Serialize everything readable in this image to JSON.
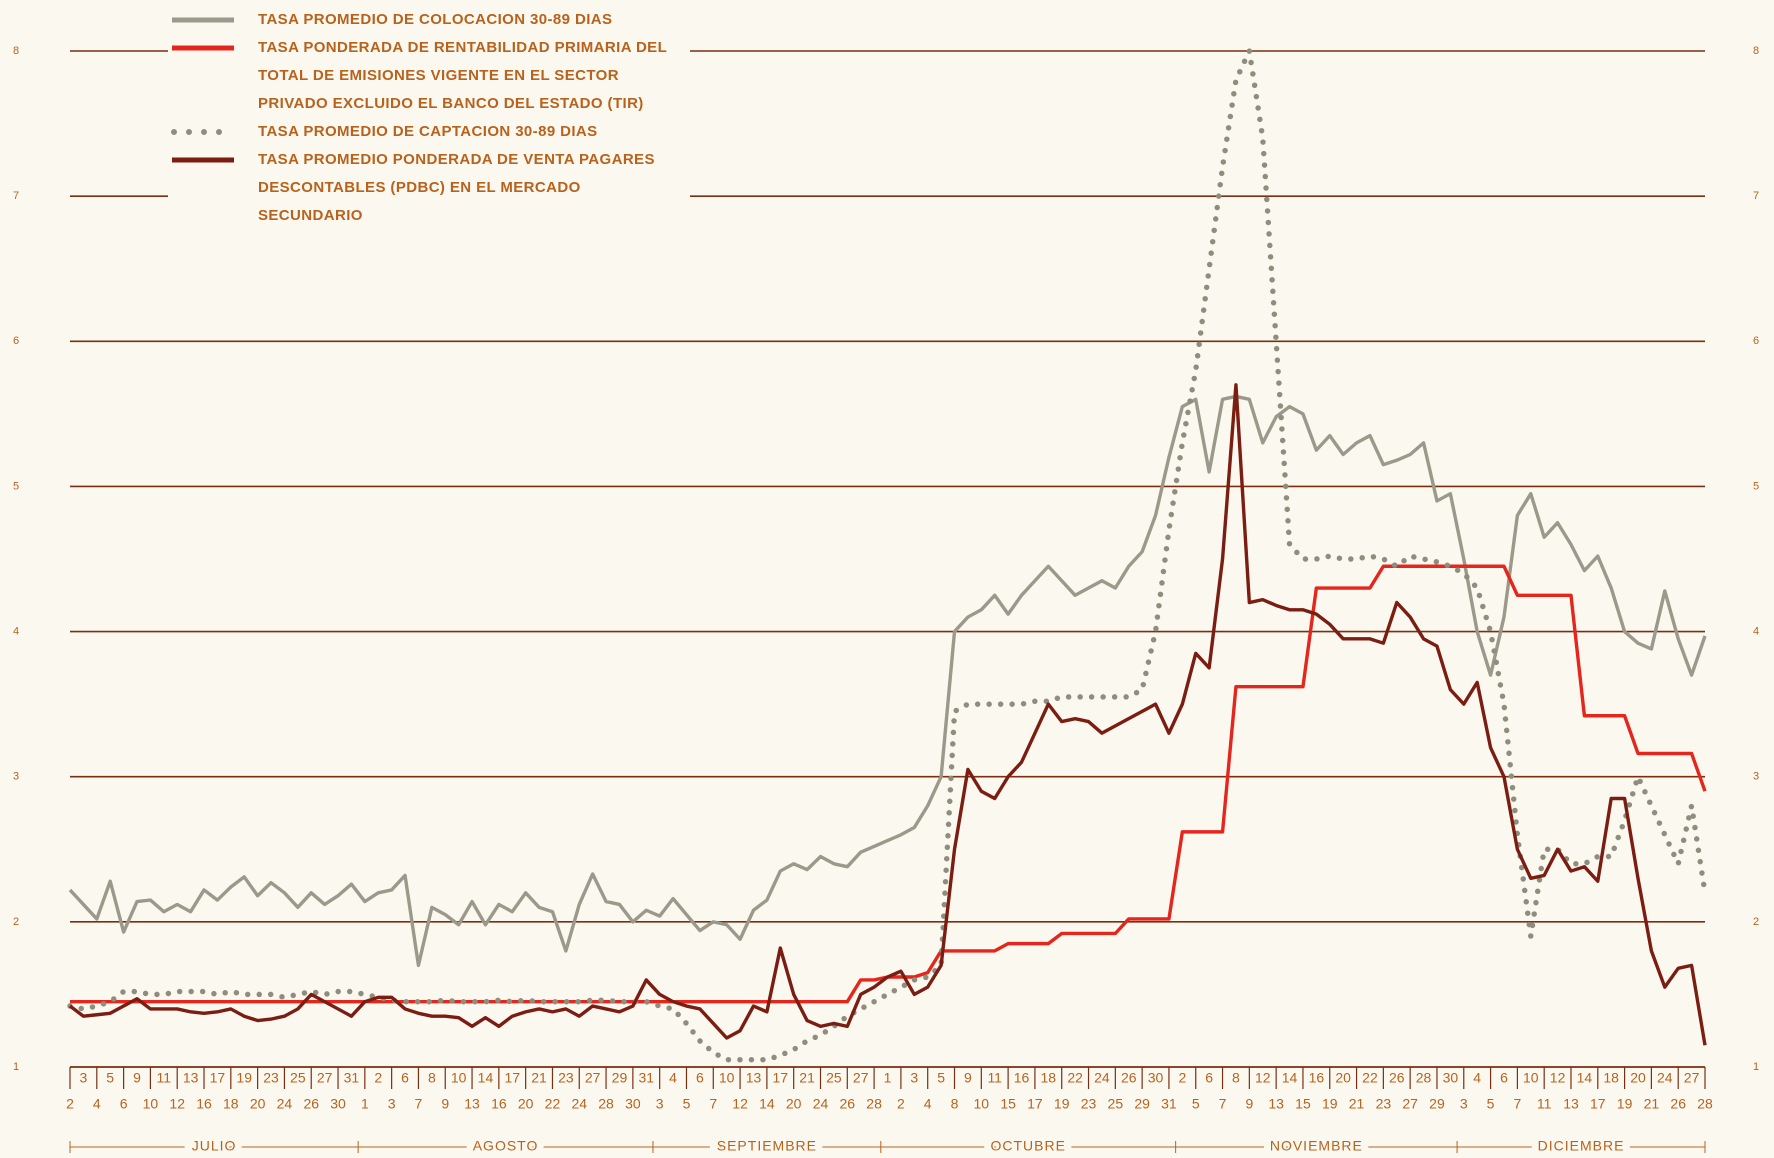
{
  "chart_data": {
    "type": "line",
    "categories": [
      "2",
      "3",
      "4",
      "5",
      "6",
      "9",
      "10",
      "11",
      "12",
      "13",
      "16",
      "17",
      "18",
      "19",
      "20",
      "23",
      "24",
      "25",
      "26",
      "27",
      "30",
      "31",
      "1",
      "2",
      "3",
      "6",
      "7",
      "8",
      "9",
      "10",
      "13",
      "14",
      "16",
      "17",
      "20",
      "21",
      "22",
      "23",
      "24",
      "27",
      "28",
      "29",
      "30",
      "31",
      "3",
      "4",
      "5",
      "6",
      "7",
      "10",
      "12",
      "13",
      "14",
      "17",
      "20",
      "21",
      "24",
      "25",
      "26",
      "27",
      "28",
      "1",
      "2",
      "3",
      "4",
      "5",
      "8",
      "9",
      "10",
      "11",
      "15",
      "16",
      "17",
      "18",
      "19",
      "22",
      "23",
      "24",
      "25",
      "26",
      "29",
      "30",
      "31",
      "2",
      "5",
      "6",
      "7",
      "8",
      "9",
      "12",
      "13",
      "14",
      "15",
      "16",
      "19",
      "20",
      "21",
      "22",
      "23",
      "26",
      "27",
      "28",
      "29",
      "30",
      "3",
      "4",
      "5",
      "6",
      "7",
      "10",
      "11",
      "12",
      "13",
      "14",
      "17",
      "18",
      "19",
      "20",
      "21",
      "24",
      "26",
      "27",
      "28"
    ],
    "months": [
      "JULIO",
      "AGOSTO",
      "SEPTIEMBRE",
      "OCTUBRE",
      "NOVIEMBRE",
      "DICIEMBRE"
    ],
    "series": [
      {
        "name": "TASA PROMEDIO DE COLOCACION 30-89 DIAS",
        "color": "#9a998a",
        "style": "solid",
        "values": [
          2.22,
          2.12,
          2.02,
          2.28,
          1.93,
          2.14,
          2.15,
          2.07,
          2.12,
          2.07,
          2.22,
          2.15,
          2.24,
          2.31,
          2.18,
          2.27,
          2.2,
          2.1,
          2.2,
          2.12,
          2.18,
          2.26,
          2.14,
          2.2,
          2.22,
          2.32,
          1.7,
          2.1,
          2.05,
          1.98,
          2.14,
          1.98,
          2.12,
          2.07,
          2.2,
          2.1,
          2.07,
          1.8,
          2.12,
          2.33,
          2.14,
          2.12,
          2.0,
          2.08,
          2.04,
          2.16,
          2.05,
          1.94,
          2.0,
          1.98,
          1.88,
          2.08,
          2.15,
          2.35,
          2.4,
          2.36,
          2.45,
          2.4,
          2.38,
          2.48,
          2.52,
          2.56,
          2.6,
          2.65,
          2.8,
          3.0,
          4.0,
          4.1,
          4.15,
          4.25,
          4.12,
          4.25,
          4.35,
          4.45,
          4.35,
          4.25,
          4.3,
          4.35,
          4.3,
          4.45,
          4.55,
          4.8,
          5.2,
          5.55,
          5.6,
          5.1,
          5.6,
          5.62,
          5.6,
          5.3,
          5.48,
          5.55,
          5.5,
          5.25,
          5.35,
          5.22,
          5.3,
          5.35,
          5.15,
          5.18,
          5.22,
          5.3,
          4.9,
          4.95,
          4.5,
          4.0,
          3.7,
          4.1,
          4.8,
          4.95,
          4.65,
          4.75,
          4.6,
          4.42,
          4.52,
          4.3,
          4.0,
          3.92,
          3.88,
          4.28,
          3.95,
          3.7,
          3.97
        ]
      },
      {
        "name": "TASA PONDERADA DE RENTABILIDAD PRIMARIA DEL TOTAL DE EMISIONES VIGENTE EN EL SECTOR PRIVADO EXCLUIDO EL BANCO DEL ESTADO (TIR)",
        "color": "#e5261d",
        "style": "solid",
        "values": [
          1.45,
          1.45,
          1.45,
          1.45,
          1.45,
          1.45,
          1.45,
          1.45,
          1.45,
          1.45,
          1.45,
          1.45,
          1.45,
          1.45,
          1.45,
          1.45,
          1.45,
          1.45,
          1.45,
          1.45,
          1.45,
          1.45,
          1.45,
          1.45,
          1.45,
          1.45,
          1.45,
          1.45,
          1.45,
          1.45,
          1.45,
          1.45,
          1.45,
          1.45,
          1.45,
          1.45,
          1.45,
          1.45,
          1.45,
          1.45,
          1.45,
          1.45,
          1.45,
          1.45,
          1.45,
          1.45,
          1.45,
          1.45,
          1.45,
          1.45,
          1.45,
          1.45,
          1.45,
          1.45,
          1.45,
          1.45,
          1.45,
          1.45,
          1.45,
          1.6,
          1.6,
          1.62,
          1.62,
          1.62,
          1.65,
          1.8,
          1.8,
          1.8,
          1.8,
          1.8,
          1.85,
          1.85,
          1.85,
          1.85,
          1.92,
          1.92,
          1.92,
          1.92,
          1.92,
          2.02,
          2.02,
          2.02,
          2.02,
          2.62,
          2.62,
          2.62,
          2.62,
          3.62,
          3.62,
          3.62,
          3.62,
          3.62,
          3.62,
          4.3,
          4.3,
          4.3,
          4.3,
          4.3,
          4.45,
          4.45,
          4.45,
          4.45,
          4.45,
          4.45,
          4.45,
          4.45,
          4.45,
          4.45,
          4.25,
          4.25,
          4.25,
          4.25,
          4.25,
          3.42,
          3.42,
          3.42,
          3.42,
          3.16,
          3.16,
          3.16,
          3.16,
          3.16,
          2.9
        ]
      },
      {
        "name": "TASA PROMEDIO DE CAPTACION 30-89 DIAS",
        "color": "#8f8e7e",
        "style": "dotted",
        "values": [
          1.42,
          1.4,
          1.42,
          1.45,
          1.52,
          1.52,
          1.5,
          1.5,
          1.52,
          1.52,
          1.52,
          1.5,
          1.52,
          1.5,
          1.5,
          1.5,
          1.48,
          1.5,
          1.52,
          1.5,
          1.52,
          1.52,
          1.5,
          1.48,
          1.46,
          1.45,
          1.45,
          1.45,
          1.46,
          1.45,
          1.45,
          1.45,
          1.46,
          1.45,
          1.46,
          1.45,
          1.45,
          1.45,
          1.45,
          1.46,
          1.46,
          1.45,
          1.45,
          1.45,
          1.42,
          1.4,
          1.3,
          1.18,
          1.1,
          1.05,
          1.05,
          1.05,
          1.05,
          1.08,
          1.12,
          1.18,
          1.22,
          1.28,
          1.35,
          1.4,
          1.45,
          1.5,
          1.55,
          1.6,
          1.62,
          1.7,
          3.45,
          3.5,
          3.5,
          3.5,
          3.5,
          3.5,
          3.52,
          3.52,
          3.55,
          3.55,
          3.55,
          3.55,
          3.55,
          3.55,
          3.6,
          4.0,
          4.7,
          5.3,
          5.8,
          6.5,
          7.2,
          7.8,
          8.0,
          7.4,
          6.0,
          4.6,
          4.5,
          4.5,
          4.52,
          4.5,
          4.5,
          4.52,
          4.5,
          4.45,
          4.52,
          4.5,
          4.48,
          4.45,
          4.4,
          4.3,
          4.0,
          3.5,
          2.6,
          1.9,
          2.5,
          2.5,
          2.4,
          2.4,
          2.45,
          2.45,
          2.7,
          3.0,
          2.8,
          2.6,
          2.4,
          2.8,
          2.2
        ]
      },
      {
        "name": "TASA PROMEDIO PONDERADA DE VENTA PAGARES DESCONTABLES (PDBC) EN EL MERCADO SECUNDARIO",
        "color": "#7b1d12",
        "style": "solid",
        "values": [
          1.42,
          1.35,
          1.36,
          1.37,
          1.42,
          1.47,
          1.4,
          1.4,
          1.4,
          1.38,
          1.37,
          1.38,
          1.4,
          1.35,
          1.32,
          1.33,
          1.35,
          1.4,
          1.5,
          1.45,
          1.4,
          1.35,
          1.45,
          1.48,
          1.48,
          1.4,
          1.37,
          1.35,
          1.35,
          1.34,
          1.28,
          1.34,
          1.28,
          1.35,
          1.38,
          1.4,
          1.38,
          1.4,
          1.35,
          1.42,
          1.4,
          1.38,
          1.42,
          1.6,
          1.5,
          1.45,
          1.42,
          1.4,
          1.3,
          1.2,
          1.25,
          1.42,
          1.38,
          1.82,
          1.5,
          1.32,
          1.28,
          1.3,
          1.28,
          1.5,
          1.55,
          1.62,
          1.66,
          1.5,
          1.55,
          1.7,
          2.5,
          3.05,
          2.9,
          2.85,
          3.0,
          3.1,
          3.3,
          3.5,
          3.38,
          3.4,
          3.38,
          3.3,
          3.35,
          3.4,
          3.45,
          3.5,
          3.3,
          3.5,
          3.85,
          3.75,
          4.5,
          5.7,
          4.2,
          4.22,
          4.18,
          4.15,
          4.15,
          4.12,
          4.05,
          3.95,
          3.95,
          3.95,
          3.92,
          4.2,
          4.1,
          3.95,
          3.9,
          3.6,
          3.5,
          3.65,
          3.2,
          3.0,
          2.5,
          2.3,
          2.32,
          2.5,
          2.35,
          2.38,
          2.28,
          2.85,
          2.85,
          2.3,
          1.8,
          1.55,
          1.68,
          1.7,
          1.15
        ]
      }
    ],
    "ylim": [
      1,
      8
    ],
    "yticks": [
      1,
      2,
      3,
      4,
      5,
      6,
      7,
      8
    ],
    "grid": true,
    "grid_color": "#7a2e12"
  }
}
